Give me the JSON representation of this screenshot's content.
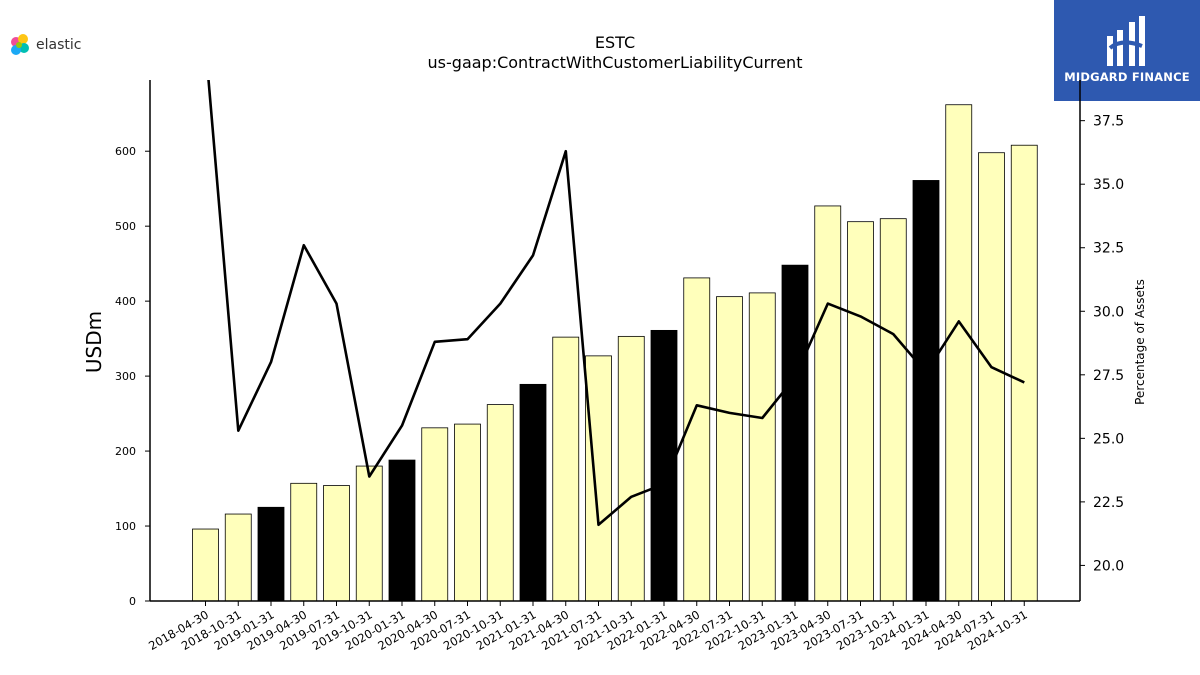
{
  "logo": {
    "text": "elastic"
  },
  "badge": {
    "text": "MIDGARD FINANCE"
  },
  "colors": {
    "bar_highlight": "#000000",
    "bar_default": "#ffffbb",
    "line": "#000000",
    "badge_bg": "#2e59b0"
  },
  "chart_data": {
    "type": "bar",
    "title": "ESTC",
    "subtitle": "us-gaap:ContractWithCustomerLiabilityCurrent",
    "ylabel": "USDm",
    "y2label": "Percentage of Assets",
    "ylim": [
      0,
      695
    ],
    "y2lim": [
      18.6,
      39.1
    ],
    "yticks": [
      0,
      100,
      200,
      300,
      400,
      500,
      600
    ],
    "y2ticks": [
      20.0,
      22.5,
      25.0,
      27.5,
      30.0,
      32.5,
      35.0,
      37.5
    ],
    "categories": [
      "2018-04-30",
      "2018-10-31",
      "2019-01-31",
      "2019-04-30",
      "2019-07-31",
      "2019-10-31",
      "2020-01-31",
      "2020-04-30",
      "2020-07-31",
      "2020-10-31",
      "2021-01-31",
      "2021-04-30",
      "2021-07-31",
      "2021-10-31",
      "2022-01-31",
      "2022-04-30",
      "2022-07-31",
      "2022-10-31",
      "2023-01-31",
      "2023-04-30",
      "2023-07-31",
      "2023-10-31",
      "2024-01-31",
      "2024-04-30",
      "2024-07-31",
      "2024-10-31"
    ],
    "series": [
      {
        "type": "bar",
        "values": [
          96,
          116,
          125,
          157,
          154,
          180,
          188,
          231,
          236,
          262,
          289,
          352,
          327,
          353,
          361,
          431,
          406,
          411,
          448,
          527,
          506,
          510,
          561,
          662,
          598,
          608
        ],
        "highlight": [
          false,
          false,
          true,
          false,
          false,
          false,
          true,
          false,
          false,
          false,
          true,
          false,
          false,
          false,
          true,
          false,
          false,
          false,
          true,
          false,
          false,
          false,
          true,
          false,
          false,
          false
        ]
      },
      {
        "type": "line",
        "axis": "right",
        "values": [
          40.5,
          25.3,
          28.0,
          32.6,
          30.3,
          23.5,
          25.5,
          28.8,
          28.9,
          30.3,
          32.2,
          36.3,
          21.6,
          22.7,
          23.2,
          26.3,
          26.0,
          25.8,
          27.4,
          30.3,
          29.8,
          29.1,
          27.6,
          29.6,
          27.8,
          27.2
        ]
      }
    ]
  }
}
